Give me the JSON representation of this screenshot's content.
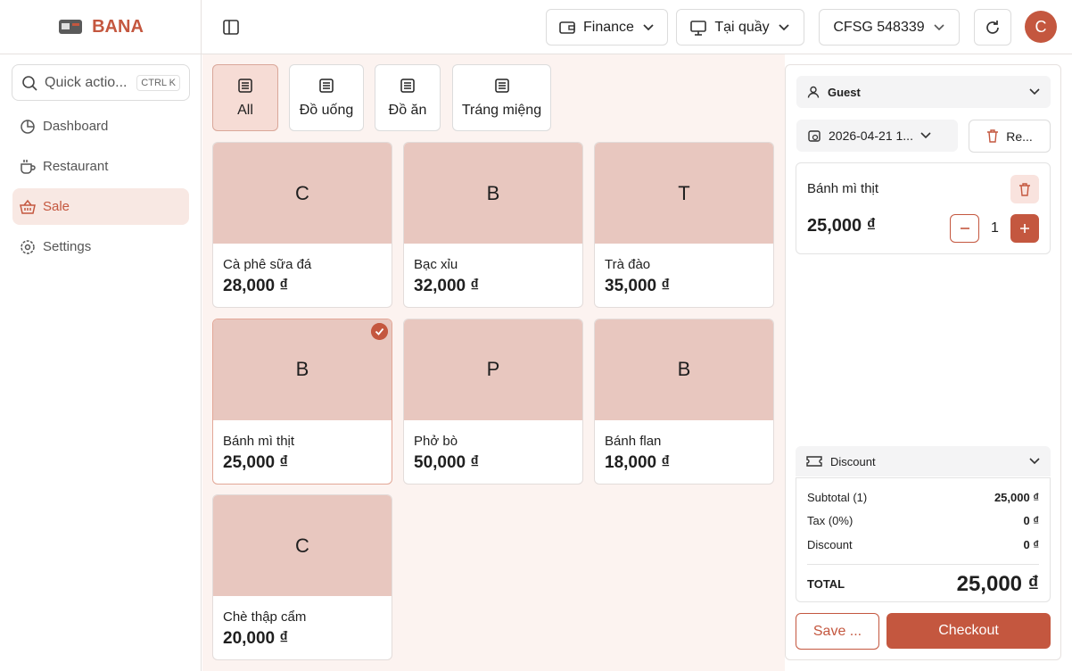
{
  "brand": "BANA",
  "search": {
    "placeholder": "Quick actio...",
    "shortcut": "CTRL K"
  },
  "nav": [
    {
      "label": "Dashboard"
    },
    {
      "label": "Restaurant"
    },
    {
      "label": "Sale",
      "active": true
    },
    {
      "label": "Settings"
    }
  ],
  "topbar": {
    "workspace": "Finance",
    "mode": "Tại quầy",
    "terminal": "CFSG 548339",
    "avatar": "C"
  },
  "categories": [
    {
      "label": "All",
      "active": true
    },
    {
      "label": "Đồ uống"
    },
    {
      "label": "Đồ ăn"
    },
    {
      "label": "Tráng miệng"
    }
  ],
  "products": [
    {
      "initial": "C",
      "name": "Cà phê sữa đá",
      "price": "28,000 ₫"
    },
    {
      "initial": "B",
      "name": "Bạc xỉu",
      "price": "32,000 ₫"
    },
    {
      "initial": "T",
      "name": "Trà đào",
      "price": "35,000 ₫"
    },
    {
      "initial": "B",
      "name": "Bánh mì thịt",
      "price": "25,000 ₫",
      "selected": true
    },
    {
      "initial": "P",
      "name": "Phở bò",
      "price": "50,000 ₫"
    },
    {
      "initial": "B",
      "name": "Bánh flan",
      "price": "18,000 ₫"
    },
    {
      "initial": "C",
      "name": "Chè thập cẩm",
      "price": "20,000 ₫"
    }
  ],
  "cart": {
    "customer": "Guest",
    "date": "2026-04-21 1...",
    "reset": "Re...",
    "items": [
      {
        "name": "Bánh mì thịt",
        "price": "25,000 ₫",
        "qty": 1
      }
    ],
    "discount_label": "Discount",
    "summary": [
      {
        "label": "Subtotal (1)",
        "value": "25,000 ₫"
      },
      {
        "label": "Tax (0%)",
        "value": "0 ₫"
      },
      {
        "label": "Discount",
        "value": "0 ₫"
      }
    ],
    "total_label": "TOTAL",
    "total": "25,000 ₫",
    "save": "Save ...",
    "checkout": "Checkout"
  }
}
